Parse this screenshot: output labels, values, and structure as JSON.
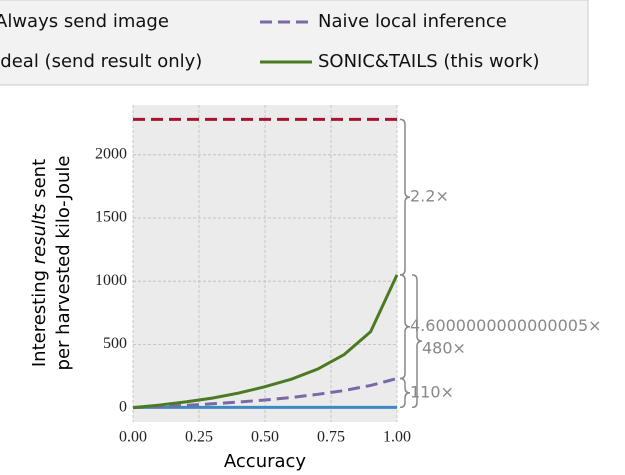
{
  "chart_data": {
    "type": "line",
    "x_label": "Accuracy",
    "y_label_parts": [
      "Interesting",
      "results",
      "sent"
    ],
    "y_label_line2": "per harvested kilo-Joule",
    "x": [
      0,
      0.1,
      0.2,
      0.3,
      0.4,
      0.5,
      0.6,
      0.7,
      0.8,
      0.9,
      1.0
    ],
    "series": [
      {
        "name": "Always send image",
        "color": "#3b8bc2",
        "dash": false,
        "values": [
          2,
          2,
          2,
          2,
          2,
          2,
          2,
          2,
          2,
          2,
          2
        ]
      },
      {
        "name": "Ideal (send result only)",
        "color": "#a8132f",
        "dash": true,
        "values": [
          2280,
          2280,
          2280,
          2280,
          2280,
          2280,
          2280,
          2280,
          2280,
          2280,
          2280
        ]
      },
      {
        "name": "Naive local inference",
        "color": "#7b68a6",
        "dash": true,
        "values": [
          0,
          8,
          18,
          30,
          44,
          60,
          80,
          105,
          135,
          175,
          230
        ]
      },
      {
        "name": "SONIC&TAILS (this work)",
        "color": "#4a7a22",
        "dash": false,
        "values": [
          0,
          20,
          45,
          75,
          115,
          165,
          225,
          305,
          420,
          600,
          1050
        ]
      }
    ],
    "xlim": [
      0,
      1
    ],
    "xticks": [
      {
        "value": 0,
        "label": "0.00"
      },
      {
        "value": 0.25,
        "label": "0.25"
      },
      {
        "value": 0.5,
        "label": "0.50"
      },
      {
        "value": 0.75,
        "label": "0.75"
      },
      {
        "value": 1,
        "label": "1.00"
      }
    ],
    "ylim": [
      -114,
      2394
    ],
    "yticks": [
      0,
      500,
      1000,
      1500,
      2000
    ],
    "grid": true,
    "annotations": [
      "2.2×",
      "4.6000000000000005×",
      "480×",
      "110×"
    ]
  }
}
